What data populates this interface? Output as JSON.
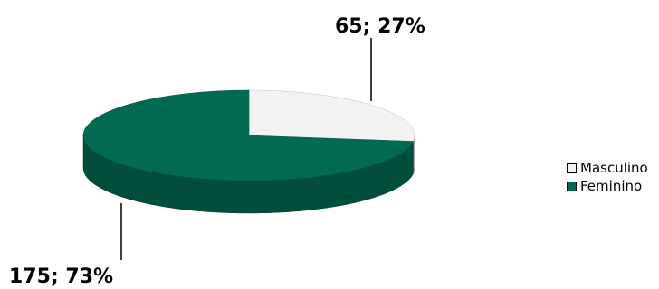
{
  "chart_data": {
    "type": "pie",
    "style": "3d",
    "slices": [
      {
        "label": "Masculino",
        "value": 65,
        "percent": 27,
        "data_label": "65; 27%",
        "color": "#f2f2f2"
      },
      {
        "label": "Feminino",
        "value": 175,
        "percent": 73,
        "data_label": "175; 73%",
        "color": "#006b52"
      }
    ],
    "legend": {
      "position": "right"
    }
  }
}
